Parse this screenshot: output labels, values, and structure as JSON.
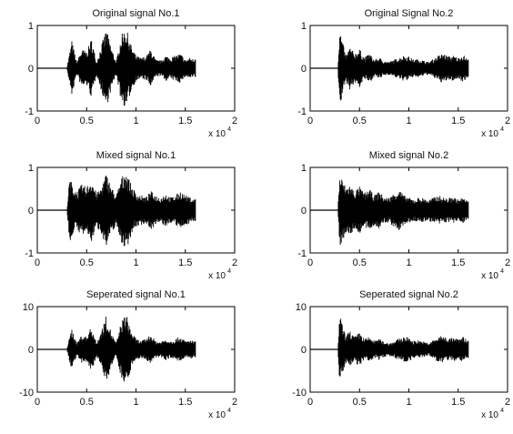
{
  "figure": {
    "exponent_base": "x 10",
    "exponent_power": "4"
  },
  "chart_data": [
    {
      "type": "line",
      "title": "Original signal No.1",
      "xlim": [
        0,
        2
      ],
      "ylim": [
        -1,
        1
      ],
      "xticks": [
        "0",
        "0.5",
        "1",
        "1.5",
        "2"
      ],
      "yticks": [
        "-1",
        "0",
        "1"
      ],
      "x_exponent": "x 10^4",
      "x": [
        0.0,
        0.3,
        0.35,
        0.4,
        0.45,
        0.5,
        0.55,
        0.6,
        0.65,
        0.7,
        0.75,
        0.8,
        0.85,
        0.9,
        0.95,
        1.0,
        1.05,
        1.1,
        1.15,
        1.2,
        1.25,
        1.3,
        1.35,
        1.4,
        1.45,
        1.5,
        1.55,
        1.6
      ],
      "envelope": [
        0.0,
        0.02,
        0.65,
        0.15,
        0.45,
        0.4,
        0.7,
        0.15,
        0.55,
        0.92,
        0.5,
        0.15,
        0.78,
        0.95,
        0.55,
        0.3,
        0.25,
        0.28,
        0.45,
        0.2,
        0.18,
        0.3,
        0.25,
        0.3,
        0.35,
        0.2,
        0.25,
        0.2
      ]
    },
    {
      "type": "line",
      "title": "Original Signal No.2",
      "xlim": [
        0,
        2
      ],
      "ylim": [
        -1,
        1
      ],
      "xticks": [
        "0",
        "0.5",
        "1",
        "1.5",
        "2"
      ],
      "yticks": [
        "-1",
        "0",
        "1"
      ],
      "x_exponent": "x 10^4",
      "x": [
        0.0,
        0.28,
        0.3,
        0.33,
        0.36,
        0.4,
        0.45,
        0.5,
        0.55,
        0.6,
        0.65,
        0.7,
        0.75,
        0.8,
        0.85,
        0.9,
        0.95,
        1.0,
        1.05,
        1.1,
        1.15,
        1.2,
        1.25,
        1.3,
        1.35,
        1.4,
        1.45,
        1.5,
        1.55,
        1.6
      ],
      "envelope": [
        0.0,
        0.02,
        0.95,
        0.6,
        0.3,
        0.5,
        0.35,
        0.45,
        0.25,
        0.35,
        0.2,
        0.25,
        0.18,
        0.15,
        0.2,
        0.25,
        0.3,
        0.28,
        0.2,
        0.22,
        0.18,
        0.15,
        0.22,
        0.3,
        0.35,
        0.28,
        0.3,
        0.25,
        0.32,
        0.2
      ]
    },
    {
      "type": "line",
      "title": "Mixed signal No.1",
      "xlim": [
        0,
        2
      ],
      "ylim": [
        -1,
        1
      ],
      "xticks": [
        "0",
        "0.5",
        "1",
        "1.5",
        "2"
      ],
      "yticks": [
        "-1",
        "0",
        "1"
      ],
      "x_exponent": "x 10^4",
      "x": [
        0.0,
        0.3,
        0.33,
        0.36,
        0.4,
        0.45,
        0.5,
        0.55,
        0.6,
        0.65,
        0.7,
        0.75,
        0.8,
        0.85,
        0.9,
        0.95,
        1.0,
        1.05,
        1.1,
        1.15,
        1.2,
        1.25,
        1.3,
        1.35,
        1.4,
        1.45,
        1.5,
        1.55,
        1.6
      ],
      "envelope": [
        0.0,
        0.02,
        0.8,
        0.55,
        0.45,
        0.6,
        0.55,
        0.75,
        0.4,
        0.55,
        0.88,
        0.55,
        0.35,
        0.75,
        0.95,
        0.6,
        0.4,
        0.35,
        0.3,
        0.45,
        0.35,
        0.3,
        0.4,
        0.3,
        0.35,
        0.45,
        0.35,
        0.3,
        0.25
      ]
    },
    {
      "type": "line",
      "title": "Mixed signal No.2",
      "xlim": [
        0,
        2
      ],
      "ylim": [
        -1,
        1
      ],
      "xticks": [
        "0",
        "0.5",
        "1",
        "1.5",
        "2"
      ],
      "yticks": [
        "-1",
        "0",
        "1"
      ],
      "x_exponent": "x 10^4",
      "x": [
        0.0,
        0.28,
        0.3,
        0.33,
        0.36,
        0.4,
        0.45,
        0.5,
        0.55,
        0.6,
        0.65,
        0.7,
        0.75,
        0.8,
        0.85,
        0.9,
        0.95,
        1.0,
        1.05,
        1.1,
        1.15,
        1.2,
        1.25,
        1.3,
        1.35,
        1.4,
        1.45,
        1.5,
        1.55,
        1.6
      ],
      "envelope": [
        0.0,
        0.02,
        0.85,
        0.7,
        0.55,
        0.6,
        0.45,
        0.55,
        0.4,
        0.5,
        0.35,
        0.45,
        0.3,
        0.3,
        0.4,
        0.5,
        0.35,
        0.3,
        0.25,
        0.3,
        0.28,
        0.25,
        0.3,
        0.35,
        0.3,
        0.28,
        0.32,
        0.25,
        0.3,
        0.2
      ]
    },
    {
      "type": "line",
      "title": "Seperated signal No.1",
      "xlim": [
        0,
        2
      ],
      "ylim": [
        -10,
        10
      ],
      "xticks": [
        "0",
        "0.5",
        "1",
        "1.5",
        "2"
      ],
      "yticks": [
        "-10",
        "0",
        "10"
      ],
      "x_exponent": "x 10^4",
      "x": [
        0.0,
        0.3,
        0.35,
        0.4,
        0.45,
        0.5,
        0.55,
        0.6,
        0.65,
        0.7,
        0.75,
        0.8,
        0.85,
        0.9,
        0.95,
        1.0,
        1.05,
        1.1,
        1.15,
        1.2,
        1.25,
        1.3,
        1.35,
        1.4,
        1.45,
        1.5,
        1.55,
        1.6
      ],
      "envelope": [
        0.0,
        0.2,
        5.0,
        1.5,
        3.5,
        3.0,
        5.5,
        1.5,
        4.5,
        8.0,
        4.0,
        1.5,
        6.5,
        8.5,
        4.5,
        2.5,
        2.0,
        2.5,
        3.5,
        2.0,
        1.8,
        2.5,
        2.0,
        2.5,
        3.0,
        2.0,
        2.2,
        1.8
      ]
    },
    {
      "type": "line",
      "title": "Seperated signal No.2",
      "xlim": [
        0,
        2
      ],
      "ylim": [
        -10,
        10
      ],
      "xticks": [
        "0",
        "0.5",
        "1",
        "1.5",
        "2"
      ],
      "yticks": [
        "-10",
        "0",
        "10"
      ],
      "x_exponent": "x 10^4",
      "x": [
        0.0,
        0.28,
        0.3,
        0.33,
        0.36,
        0.4,
        0.45,
        0.5,
        0.55,
        0.6,
        0.65,
        0.7,
        0.75,
        0.8,
        0.85,
        0.9,
        0.95,
        1.0,
        1.05,
        1.1,
        1.15,
        1.2,
        1.25,
        1.3,
        1.35,
        1.4,
        1.45,
        1.5,
        1.55,
        1.6
      ],
      "envelope": [
        0.0,
        0.2,
        8.5,
        5.5,
        3.0,
        4.5,
        3.0,
        4.0,
        2.5,
        3.0,
        2.0,
        2.5,
        1.8,
        1.5,
        2.0,
        2.5,
        3.0,
        2.8,
        2.0,
        2.2,
        1.8,
        1.5,
        2.2,
        3.0,
        3.2,
        2.6,
        2.8,
        2.4,
        3.0,
        2.0
      ]
    }
  ]
}
